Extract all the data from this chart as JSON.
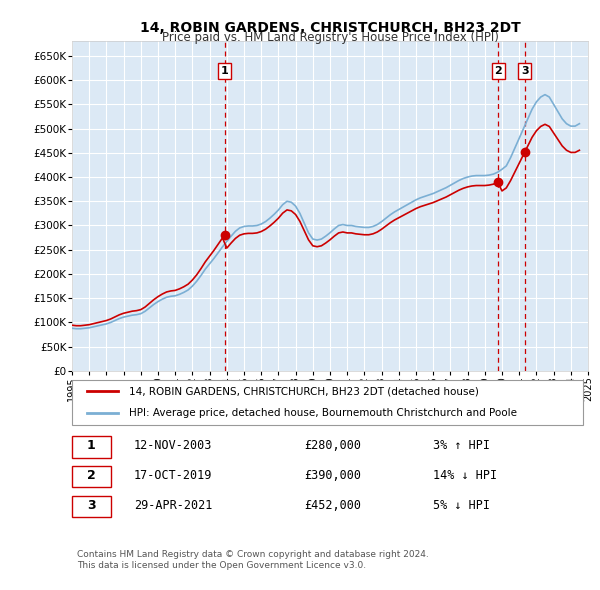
{
  "title": "14, ROBIN GARDENS, CHRISTCHURCH, BH23 2DT",
  "subtitle": "Price paid vs. HM Land Registry's House Price Index (HPI)",
  "background_color": "#ffffff",
  "plot_bg_color": "#dce9f5",
  "grid_color": "#ffffff",
  "red_line_color": "#cc0000",
  "blue_line_color": "#7bafd4",
  "sale_marker_color": "#cc0000",
  "dashed_line_color": "#cc0000",
  "ylabel_currency": "£",
  "yticks": [
    0,
    50000,
    100000,
    150000,
    200000,
    250000,
    300000,
    350000,
    400000,
    450000,
    500000,
    550000,
    600000,
    650000
  ],
  "ytick_labels": [
    "£0",
    "£50K",
    "£100K",
    "£150K",
    "£200K",
    "£250K",
    "£300K",
    "£350K",
    "£400K",
    "£450K",
    "£500K",
    "£550K",
    "£600K",
    "£650K"
  ],
  "xmin": 1995,
  "xmax": 2025,
  "ymin": 0,
  "ymax": 680000,
  "sale_points": [
    {
      "year": 2003.87,
      "price": 280000,
      "label": "1"
    },
    {
      "year": 2019.79,
      "price": 390000,
      "label": "2"
    },
    {
      "year": 2021.33,
      "price": 452000,
      "label": "3"
    }
  ],
  "transaction_table": [
    {
      "num": "1",
      "date": "12-NOV-2003",
      "price": "£280,000",
      "hpi_pct": "3%",
      "hpi_dir": "↑",
      "hpi_text": "HPI"
    },
    {
      "num": "2",
      "date": "17-OCT-2019",
      "price": "£390,000",
      "hpi_pct": "14%",
      "hpi_dir": "↓",
      "hpi_text": "HPI"
    },
    {
      "num": "3",
      "date": "29-APR-2021",
      "price": "£452,000",
      "hpi_pct": "5%",
      "hpi_dir": "↓",
      "hpi_text": "HPI"
    }
  ],
  "legend_label_red": "14, ROBIN GARDENS, CHRISTCHURCH, BH23 2DT (detached house)",
  "legend_label_blue": "HPI: Average price, detached house, Bournemouth Christchurch and Poole",
  "footer": "Contains HM Land Registry data © Crown copyright and database right 2024.\nThis data is licensed under the Open Government Licence v3.0.",
  "hpi_data": {
    "years": [
      1995.0,
      1995.25,
      1995.5,
      1995.75,
      1996.0,
      1996.25,
      1996.5,
      1996.75,
      1997.0,
      1997.25,
      1997.5,
      1997.75,
      1998.0,
      1998.25,
      1998.5,
      1998.75,
      1999.0,
      1999.25,
      1999.5,
      1999.75,
      2000.0,
      2000.25,
      2000.5,
      2000.75,
      2001.0,
      2001.25,
      2001.5,
      2001.75,
      2002.0,
      2002.25,
      2002.5,
      2002.75,
      2003.0,
      2003.25,
      2003.5,
      2003.75,
      2004.0,
      2004.25,
      2004.5,
      2004.75,
      2005.0,
      2005.25,
      2005.5,
      2005.75,
      2006.0,
      2006.25,
      2006.5,
      2006.75,
      2007.0,
      2007.25,
      2007.5,
      2007.75,
      2008.0,
      2008.25,
      2008.5,
      2008.75,
      2009.0,
      2009.25,
      2009.5,
      2009.75,
      2010.0,
      2010.25,
      2010.5,
      2010.75,
      2011.0,
      2011.25,
      2011.5,
      2011.75,
      2012.0,
      2012.25,
      2012.5,
      2012.75,
      2013.0,
      2013.25,
      2013.5,
      2013.75,
      2014.0,
      2014.25,
      2014.5,
      2014.75,
      2015.0,
      2015.25,
      2015.5,
      2015.75,
      2016.0,
      2016.25,
      2016.5,
      2016.75,
      2017.0,
      2017.25,
      2017.5,
      2017.75,
      2018.0,
      2018.25,
      2018.5,
      2018.75,
      2019.0,
      2019.25,
      2019.5,
      2019.75,
      2020.0,
      2020.25,
      2020.5,
      2020.75,
      2021.0,
      2021.25,
      2021.5,
      2021.75,
      2022.0,
      2022.25,
      2022.5,
      2022.75,
      2023.0,
      2023.25,
      2023.5,
      2023.75,
      2024.0,
      2024.25,
      2024.5
    ],
    "values": [
      88000,
      87000,
      87000,
      88000,
      89000,
      91000,
      93000,
      95000,
      97000,
      100000,
      104000,
      108000,
      111000,
      113000,
      115000,
      116000,
      118000,
      123000,
      130000,
      137000,
      143000,
      148000,
      152000,
      154000,
      155000,
      158000,
      162000,
      167000,
      175000,
      185000,
      197000,
      210000,
      221000,
      232000,
      244000,
      256000,
      267000,
      278000,
      288000,
      295000,
      298000,
      299000,
      299000,
      300000,
      303000,
      308000,
      315000,
      323000,
      332000,
      343000,
      350000,
      348000,
      340000,
      325000,
      305000,
      285000,
      272000,
      270000,
      272000,
      278000,
      285000,
      293000,
      300000,
      302000,
      300000,
      300000,
      298000,
      297000,
      296000,
      296000,
      298000,
      302000,
      308000,
      315000,
      322000,
      328000,
      333000,
      338000,
      343000,
      348000,
      353000,
      357000,
      360000,
      363000,
      366000,
      370000,
      374000,
      378000,
      383000,
      388000,
      393000,
      397000,
      400000,
      402000,
      403000,
      403000,
      403000,
      404000,
      406000,
      410000,
      416000,
      423000,
      440000,
      460000,
      480000,
      500000,
      520000,
      540000,
      555000,
      565000,
      570000,
      565000,
      550000,
      535000,
      520000,
      510000,
      505000,
      505000,
      510000
    ]
  },
  "red_hpi_data": {
    "years": [
      1995.0,
      1995.25,
      1995.5,
      1995.75,
      1996.0,
      1996.25,
      1996.5,
      1996.75,
      1997.0,
      1997.25,
      1997.5,
      1997.75,
      1998.0,
      1998.25,
      1998.5,
      1998.75,
      1999.0,
      1999.25,
      1999.5,
      1999.75,
      2000.0,
      2000.25,
      2000.5,
      2000.75,
      2001.0,
      2001.25,
      2001.5,
      2001.75,
      2002.0,
      2002.25,
      2002.5,
      2002.75,
      2003.0,
      2003.25,
      2003.5,
      2003.75,
      2003.87,
      2004.0,
      2004.25,
      2004.5,
      2004.75,
      2005.0,
      2005.25,
      2005.5,
      2005.75,
      2006.0,
      2006.25,
      2006.5,
      2006.75,
      2007.0,
      2007.25,
      2007.5,
      2007.75,
      2008.0,
      2008.25,
      2008.5,
      2008.75,
      2009.0,
      2009.25,
      2009.5,
      2009.75,
      2010.0,
      2010.25,
      2010.5,
      2010.75,
      2011.0,
      2011.25,
      2011.5,
      2011.75,
      2012.0,
      2012.25,
      2012.5,
      2012.75,
      2013.0,
      2013.25,
      2013.5,
      2013.75,
      2014.0,
      2014.25,
      2014.5,
      2014.75,
      2015.0,
      2015.25,
      2015.5,
      2015.75,
      2016.0,
      2016.25,
      2016.5,
      2016.75,
      2017.0,
      2017.25,
      2017.5,
      2017.75,
      2018.0,
      2018.25,
      2018.5,
      2018.75,
      2019.0,
      2019.25,
      2019.5,
      2019.75,
      2019.79,
      2020.0,
      2020.25,
      2020.5,
      2020.75,
      2021.0,
      2021.25,
      2021.33,
      2021.5,
      2021.75
    ],
    "values": [
      88000,
      87000,
      87000,
      88000,
      89000,
      91000,
      93000,
      95000,
      97000,
      100000,
      104000,
      108000,
      111000,
      113000,
      115000,
      116000,
      118000,
      123000,
      130000,
      137000,
      143000,
      148000,
      152000,
      154000,
      155000,
      158000,
      162000,
      167000,
      175000,
      185000,
      197000,
      210000,
      221000,
      232000,
      244000,
      256000,
      280000,
      267000,
      278000,
      288000,
      295000,
      298000,
      299000,
      299000,
      300000,
      303000,
      308000,
      315000,
      323000,
      332000,
      343000,
      350000,
      348000,
      340000,
      325000,
      305000,
      285000,
      272000,
      270000,
      272000,
      278000,
      285000,
      293000,
      300000,
      302000,
      300000,
      300000,
      298000,
      297000,
      296000,
      296000,
      298000,
      302000,
      308000,
      315000,
      322000,
      328000,
      333000,
      338000,
      343000,
      348000,
      353000,
      357000,
      360000,
      363000,
      366000,
      370000,
      374000,
      378000,
      383000,
      388000,
      393000,
      397000,
      400000,
      402000,
      403000,
      403000,
      404000,
      406000,
      410000,
      390000,
      416000,
      423000,
      440000,
      460000,
      480000,
      390000,
      500000,
      452000,
      520000,
      540000
    ]
  }
}
